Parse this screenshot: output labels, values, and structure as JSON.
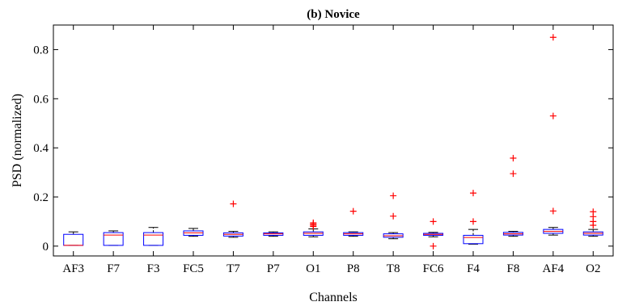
{
  "chart_data": {
    "type": "boxplot",
    "title": "(b) Novice",
    "xlabel": "Channels",
    "ylabel": "PSD (normalized)",
    "ylim": [
      -0.04,
      0.9
    ],
    "yticks": [
      0,
      0.2,
      0.4,
      0.6,
      0.8
    ],
    "ytick_labels": [
      "0",
      "0.2",
      "0.4",
      "0.6",
      "0.8"
    ],
    "grid": false,
    "colors": {
      "box": "#0000ff",
      "median": "#ff0000",
      "whisker": "#000000",
      "outlier": "#ff0000",
      "axis": "#000000"
    },
    "categories": [
      "AF3",
      "F7",
      "F3",
      "FC5",
      "T7",
      "P7",
      "O1",
      "P8",
      "T8",
      "FC6",
      "F4",
      "F8",
      "AF4",
      "O2"
    ],
    "boxes": [
      {
        "label": "AF3",
        "whislo": 0.003,
        "q1": 0.003,
        "med": 0.003,
        "q3": 0.048,
        "whishi": 0.058,
        "fliers": []
      },
      {
        "label": "F7",
        "whislo": 0.003,
        "q1": 0.003,
        "med": 0.045,
        "q3": 0.055,
        "whishi": 0.062,
        "fliers": []
      },
      {
        "label": "F3",
        "whislo": 0.003,
        "q1": 0.003,
        "med": 0.045,
        "q3": 0.055,
        "whishi": 0.076,
        "fliers": []
      },
      {
        "label": "FC5",
        "whislo": 0.04,
        "q1": 0.044,
        "med": 0.054,
        "q3": 0.062,
        "whishi": 0.072,
        "fliers": []
      },
      {
        "label": "T7",
        "whislo": 0.036,
        "q1": 0.041,
        "med": 0.048,
        "q3": 0.054,
        "whishi": 0.06,
        "fliers": [
          0.172
        ]
      },
      {
        "label": "P7",
        "whislo": 0.04,
        "q1": 0.044,
        "med": 0.05,
        "q3": 0.054,
        "whishi": 0.058,
        "fliers": []
      },
      {
        "label": "O1",
        "whislo": 0.038,
        "q1": 0.044,
        "med": 0.052,
        "q3": 0.058,
        "whishi": 0.07,
        "fliers": [
          0.08,
          0.085,
          0.09,
          0.095
        ]
      },
      {
        "label": "P8",
        "whislo": 0.04,
        "q1": 0.044,
        "med": 0.05,
        "q3": 0.055,
        "whishi": 0.058,
        "fliers": [
          0.142
        ]
      },
      {
        "label": "T8",
        "whislo": 0.03,
        "q1": 0.036,
        "med": 0.042,
        "q3": 0.05,
        "whishi": 0.055,
        "fliers": [
          0.122,
          0.205
        ]
      },
      {
        "label": "FC6",
        "whislo": 0.038,
        "q1": 0.044,
        "med": 0.048,
        "q3": 0.052,
        "whishi": 0.056,
        "fliers": [
          0.0,
          0.1
        ]
      },
      {
        "label": "F4",
        "whislo": 0.008,
        "q1": 0.01,
        "med": 0.035,
        "q3": 0.044,
        "whishi": 0.068,
        "fliers": [
          0.1,
          0.216
        ]
      },
      {
        "label": "F8",
        "whislo": 0.04,
        "q1": 0.045,
        "med": 0.05,
        "q3": 0.056,
        "whishi": 0.06,
        "fliers": [
          0.295,
          0.358
        ]
      },
      {
        "label": "AF4",
        "whislo": 0.045,
        "q1": 0.052,
        "med": 0.06,
        "q3": 0.068,
        "whishi": 0.076,
        "fliers": [
          0.143,
          0.53,
          0.85
        ]
      },
      {
        "label": "O2",
        "whislo": 0.04,
        "q1": 0.045,
        "med": 0.052,
        "q3": 0.058,
        "whishi": 0.068,
        "fliers": [
          0.085,
          0.1,
          0.12,
          0.14
        ]
      }
    ]
  }
}
